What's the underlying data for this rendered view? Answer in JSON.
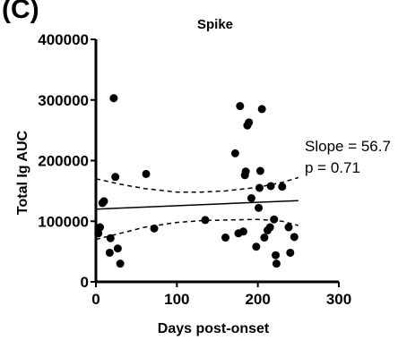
{
  "panel_label": "(C)",
  "chart_data": {
    "type": "scatter",
    "title": "Spike",
    "xlabel": "Days post-onset",
    "ylabel": "Total Ig AUC",
    "xlim": [
      0,
      300
    ],
    "ylim": [
      0,
      400000
    ],
    "xticks": [
      0,
      100,
      200,
      300
    ],
    "xtick_labels": [
      "0",
      "100",
      "200",
      "300"
    ],
    "yticks": [
      0,
      100000,
      200000,
      300000,
      400000
    ],
    "ytick_labels": [
      "0",
      "100000",
      "200000",
      "300000",
      "400000"
    ],
    "grid": false,
    "points": [
      {
        "x": 3,
        "y": 80000
      },
      {
        "x": 5,
        "y": 90000
      },
      {
        "x": 8,
        "y": 130000
      },
      {
        "x": 10,
        "y": 133000
      },
      {
        "x": 17,
        "y": 48000
      },
      {
        "x": 18,
        "y": 72000
      },
      {
        "x": 22,
        "y": 303000
      },
      {
        "x": 24,
        "y": 173000
      },
      {
        "x": 27,
        "y": 55000
      },
      {
        "x": 30,
        "y": 30000
      },
      {
        "x": 62,
        "y": 178000
      },
      {
        "x": 72,
        "y": 88000
      },
      {
        "x": 135,
        "y": 102000
      },
      {
        "x": 160,
        "y": 73000
      },
      {
        "x": 172,
        "y": 212000
      },
      {
        "x": 176,
        "y": 80000
      },
      {
        "x": 178,
        "y": 290000
      },
      {
        "x": 182,
        "y": 83000
      },
      {
        "x": 184,
        "y": 176000
      },
      {
        "x": 185,
        "y": 182000
      },
      {
        "x": 187,
        "y": 258000
      },
      {
        "x": 189,
        "y": 263000
      },
      {
        "x": 192,
        "y": 138000
      },
      {
        "x": 198,
        "y": 58000
      },
      {
        "x": 201,
        "y": 122000
      },
      {
        "x": 202,
        "y": 155000
      },
      {
        "x": 203,
        "y": 183000
      },
      {
        "x": 205,
        "y": 285000
      },
      {
        "x": 208,
        "y": 73000
      },
      {
        "x": 212,
        "y": 85000
      },
      {
        "x": 215,
        "y": 90000
      },
      {
        "x": 216,
        "y": 158000
      },
      {
        "x": 220,
        "y": 103000
      },
      {
        "x": 222,
        "y": 44000
      },
      {
        "x": 223,
        "y": 30000
      },
      {
        "x": 230,
        "y": 157000
      },
      {
        "x": 238,
        "y": 90000
      },
      {
        "x": 240,
        "y": 48000
      },
      {
        "x": 245,
        "y": 74000
      }
    ],
    "regression": {
      "x": [
        0,
        250
      ],
      "y": [
        120000,
        134000
      ]
    },
    "ci_upper": {
      "x": [
        0,
        30,
        60,
        100,
        130,
        160,
        200,
        230,
        250
      ],
      "y": [
        170000,
        161000,
        154000,
        148000,
        148000,
        150000,
        156000,
        164000,
        172000
      ]
    },
    "ci_lower": {
      "x": [
        0,
        30,
        60,
        100,
        130,
        160,
        200,
        230,
        250
      ],
      "y": [
        70000,
        80000,
        90000,
        98000,
        101000,
        102000,
        103000,
        100000,
        93000
      ]
    },
    "annotations": [
      "Slope = 56.7",
      "p = 0.71"
    ]
  }
}
